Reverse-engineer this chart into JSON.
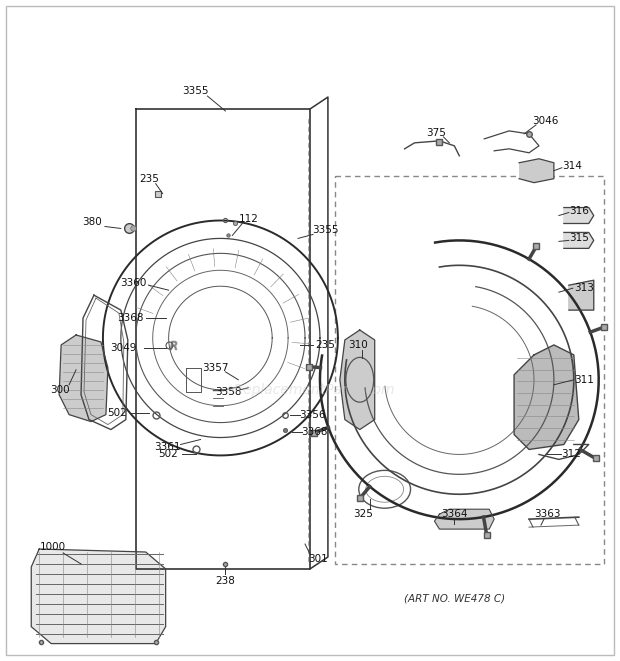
{
  "background_color": "#ffffff",
  "art_no_text": "(ART NO. WE478 C)",
  "watermark": "eReplacementParts.com",
  "line_color": "#333333",
  "label_color": "#111111",
  "label_fontsize": 7.5
}
